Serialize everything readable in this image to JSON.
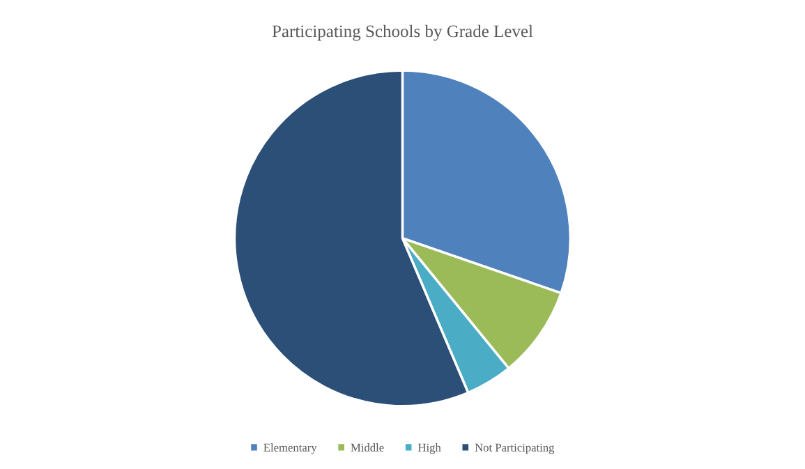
{
  "chart_data": {
    "type": "pie",
    "title": "Participating Schools by Grade Level",
    "categories": [
      "Elementary",
      "Middle",
      "High",
      "Not Participating"
    ],
    "values": [
      30.3,
      8.8,
      4.5,
      56.4
    ],
    "colors": [
      "#4f81bd",
      "#9bbb59",
      "#4bacc6",
      "#2c4f77"
    ],
    "legend": "bottom"
  }
}
